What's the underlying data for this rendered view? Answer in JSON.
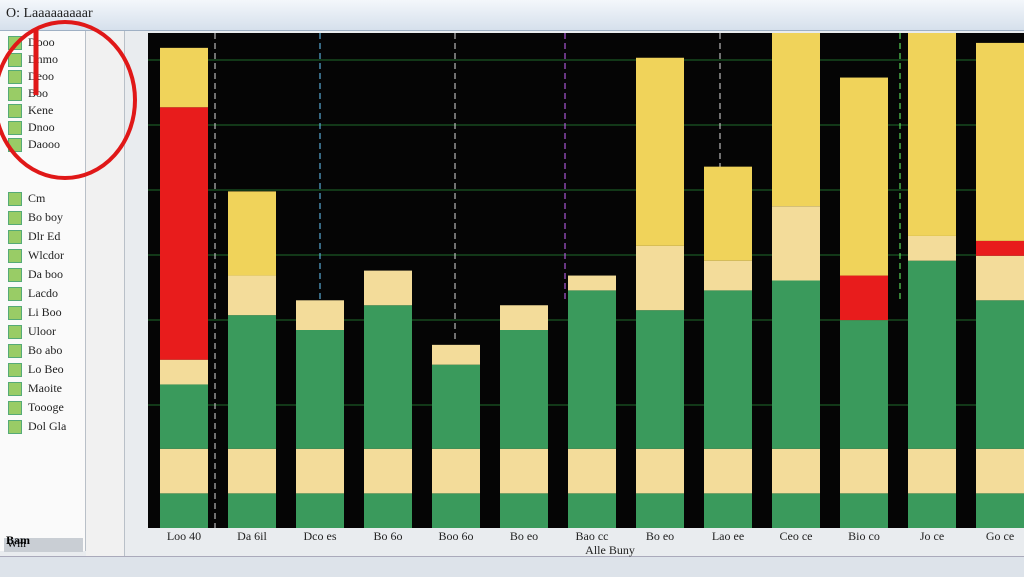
{
  "window": {
    "title": "O: Laaaaaaaaar"
  },
  "sidebar": {
    "items": [
      "Dooo",
      "Dnmo",
      "Deoo",
      "Boo",
      "Kene",
      "Dnoo",
      "Daooo",
      "Cm",
      "Bo boy",
      "Dlr Ed",
      "Wlcdor",
      "Da boo",
      "Lacdo",
      "Li Boo",
      "Uloor",
      "Bo abo",
      "Lo Beo",
      "Maoite",
      "Toooge",
      "Dol Gla"
    ],
    "status": "Wm",
    "footer": "Bam"
  },
  "chart_data": {
    "type": "bar",
    "stacked": true,
    "categories": [
      "Loo 40",
      "Da 6il",
      "Dco es",
      "Bo 6o",
      "Boo 6o",
      "Bo eo",
      "Bao cc",
      "Bo eo",
      "Lao ee",
      "Ceo ce",
      "Bio co",
      "Jo ce",
      "Go ce"
    ],
    "x_label": "Alle Buny",
    "ylim": [
      0,
      100
    ],
    "series": [
      {
        "color": "#3a9a5c",
        "values": [
          7,
          7,
          7,
          7,
          7,
          7,
          7,
          7,
          7,
          7,
          7,
          7,
          7
        ]
      },
      {
        "color": "#f3dc9a",
        "values": [
          9,
          9,
          9,
          9,
          9,
          9,
          9,
          9,
          9,
          9,
          9,
          9,
          9
        ]
      },
      {
        "color": "#3a9a5c",
        "values": [
          13,
          27,
          24,
          29,
          17,
          24,
          32,
          28,
          32,
          34,
          26,
          38,
          30
        ]
      },
      {
        "color": "#f3dc9a",
        "values": [
          5,
          8,
          6,
          7,
          4,
          5,
          3,
          13,
          6,
          15,
          0,
          5,
          9
        ]
      },
      {
        "color": "#e81c1c",
        "values": [
          51,
          0,
          0,
          0,
          0,
          0,
          0,
          0,
          0,
          0,
          9,
          0,
          3
        ]
      },
      {
        "color": "#f0d35a",
        "values": [
          12,
          17,
          0,
          0,
          0,
          0,
          0,
          38,
          19,
          35,
          40,
          41,
          40
        ]
      }
    ]
  }
}
